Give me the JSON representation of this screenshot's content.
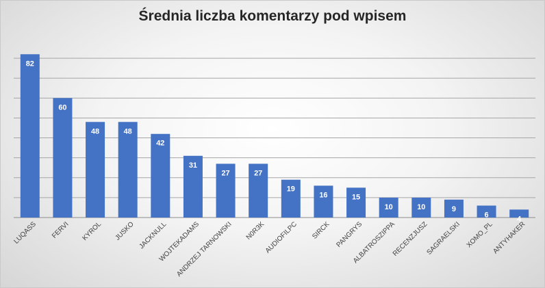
{
  "chart_data": {
    "type": "bar",
    "title": "Średnia liczba komentarzy pod wpisem",
    "xlabel": "",
    "ylabel": "",
    "categories": [
      "LUQASS",
      "FERVI",
      "KYROL",
      "JUSKO",
      "JACKNULL",
      "WOJTEKADAMS",
      "ANDRZEJ TARNOWSKI",
      "N0R3K",
      "AUDIOFILPC",
      "SIRCK",
      "PANGRYS",
      "ALBATROSZIPPA",
      "RECENZJUSZ",
      "SAGRAELSKI",
      "XOMO_PL",
      "ANTYHAKER"
    ],
    "values": [
      82,
      60,
      48,
      48,
      42,
      31,
      27,
      27,
      19,
      16,
      15,
      10,
      10,
      9,
      6,
      4
    ],
    "ylim": [
      0,
      90
    ],
    "grid": true,
    "legend": "none",
    "bar_color": "#4472c4",
    "grid_color": "#a6a6a6",
    "label_color": "#ffffff",
    "axis_text_color": "#404040"
  }
}
